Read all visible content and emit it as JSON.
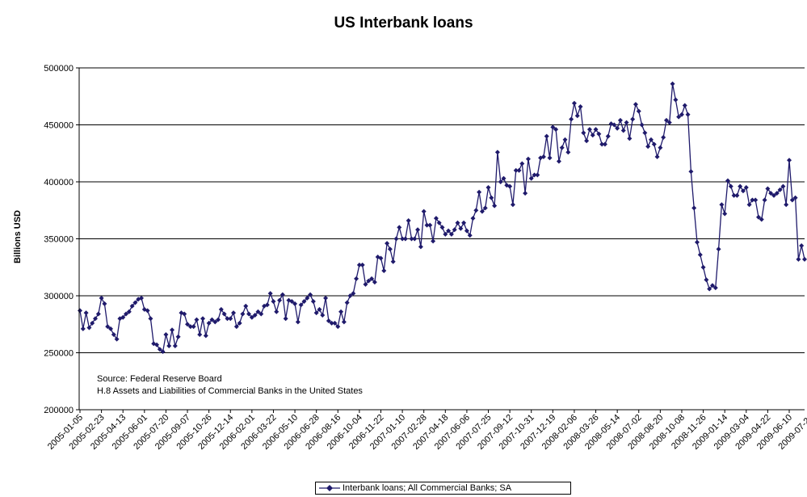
{
  "chart_data": {
    "type": "line",
    "title": "US Interbank loans",
    "xlabel": "",
    "ylabel": "Billions USD",
    "ylim": [
      200000,
      500000
    ],
    "yticks": [
      200000,
      250000,
      300000,
      350000,
      400000,
      450000,
      500000
    ],
    "ytick_labels": [
      "200000",
      "250000",
      "300000",
      "350000",
      "400000",
      "450000",
      "500000"
    ],
    "xtick_labels": [
      "2005-01-05",
      "2005-02-23",
      "2005-04-13",
      "2005-06-01",
      "2005-07-20",
      "2005-09-07",
      "2005-10-26",
      "2005-12-14",
      "2006-02-01",
      "2006-03-22",
      "2006-05-10",
      "2006-06-28",
      "2006-08-16",
      "2006-10-04",
      "2006-11-22",
      "2007-01-10",
      "2007-02-28",
      "2007-04-18",
      "2007-06-06",
      "2007-07-25",
      "2007-09-12",
      "2007-10-31",
      "2007-12-19",
      "2008-02-06",
      "2008-03-26",
      "2008-05-14",
      "2008-07-02",
      "2008-08-20",
      "2008-10-08",
      "2008-11-26",
      "2009-01-14",
      "2009-03-04",
      "2009-04-22",
      "2009-06-10",
      "2009-07-29"
    ],
    "grid": "horizontal",
    "legend_position": "bottom",
    "series": [
      {
        "name": "Interbank loans; All Commercial Banks; SA",
        "color": "#1f1a6b",
        "marker": "diamond",
        "values": [
          287000,
          271000,
          285000,
          272000,
          276000,
          280000,
          284000,
          298000,
          293000,
          273000,
          271000,
          266000,
          262000,
          280000,
          281000,
          284000,
          286000,
          291000,
          294000,
          297000,
          298000,
          288000,
          287000,
          280000,
          258000,
          257000,
          253000,
          251000,
          266000,
          256000,
          270000,
          256000,
          264000,
          285000,
          284000,
          275000,
          273000,
          273000,
          279000,
          266000,
          280000,
          265000,
          276000,
          279000,
          277000,
          279000,
          288000,
          284000,
          280000,
          280000,
          285000,
          273000,
          276000,
          284000,
          291000,
          284000,
          281000,
          283000,
          286000,
          284000,
          291000,
          292000,
          302000,
          295000,
          286000,
          296000,
          301000,
          280000,
          296000,
          295000,
          293000,
          277000,
          292000,
          295000,
          298000,
          301000,
          295000,
          285000,
          288000,
          283000,
          298000,
          278000,
          276000,
          276000,
          273000,
          286000,
          277000,
          294000,
          300000,
          302000,
          315000,
          327000,
          327000,
          310000,
          313000,
          315000,
          312000,
          334000,
          333000,
          322000,
          346000,
          341000,
          330000,
          350000,
          360000,
          350000,
          350000,
          366000,
          350000,
          350000,
          358000,
          343000,
          374000,
          362000,
          362000,
          348000,
          368000,
          364000,
          360000,
          354000,
          357000,
          354000,
          358000,
          364000,
          359000,
          364000,
          357000,
          353000,
          368000,
          375000,
          391000,
          374000,
          377000,
          395000,
          386000,
          379000,
          426000,
          400000,
          403000,
          397000,
          396000,
          380000,
          410000,
          410000,
          416000,
          390000,
          420000,
          403000,
          406000,
          406000,
          421000,
          422000,
          440000,
          421000,
          448000,
          446000,
          418000,
          430000,
          437000,
          426000,
          455000,
          469000,
          458000,
          466000,
          443000,
          436000,
          446000,
          441000,
          446000,
          442000,
          433000,
          433000,
          440000,
          451000,
          450000,
          447000,
          454000,
          445000,
          452000,
          438000,
          455000,
          468000,
          462000,
          450000,
          443000,
          431000,
          437000,
          433000,
          422000,
          430000,
          439000,
          454000,
          452000,
          486000,
          472000,
          457000,
          459000,
          467000,
          459000,
          409000,
          377000,
          347000,
          336000,
          325000,
          314000,
          306000,
          309000,
          307000,
          341000,
          380000,
          372000,
          401000,
          396000,
          388000,
          388000,
          396000,
          392000,
          395000,
          380000,
          384000,
          384000,
          369000,
          367000,
          384000,
          394000,
          390000,
          388000,
          390000,
          393000,
          396000,
          380000,
          419000,
          384000,
          386000,
          332000,
          344000,
          332000
        ]
      }
    ],
    "annotation": [
      "Source: Federal Reserve Board",
      "H.8 Assets and Liabilities of Commercial Banks in the United States"
    ]
  }
}
